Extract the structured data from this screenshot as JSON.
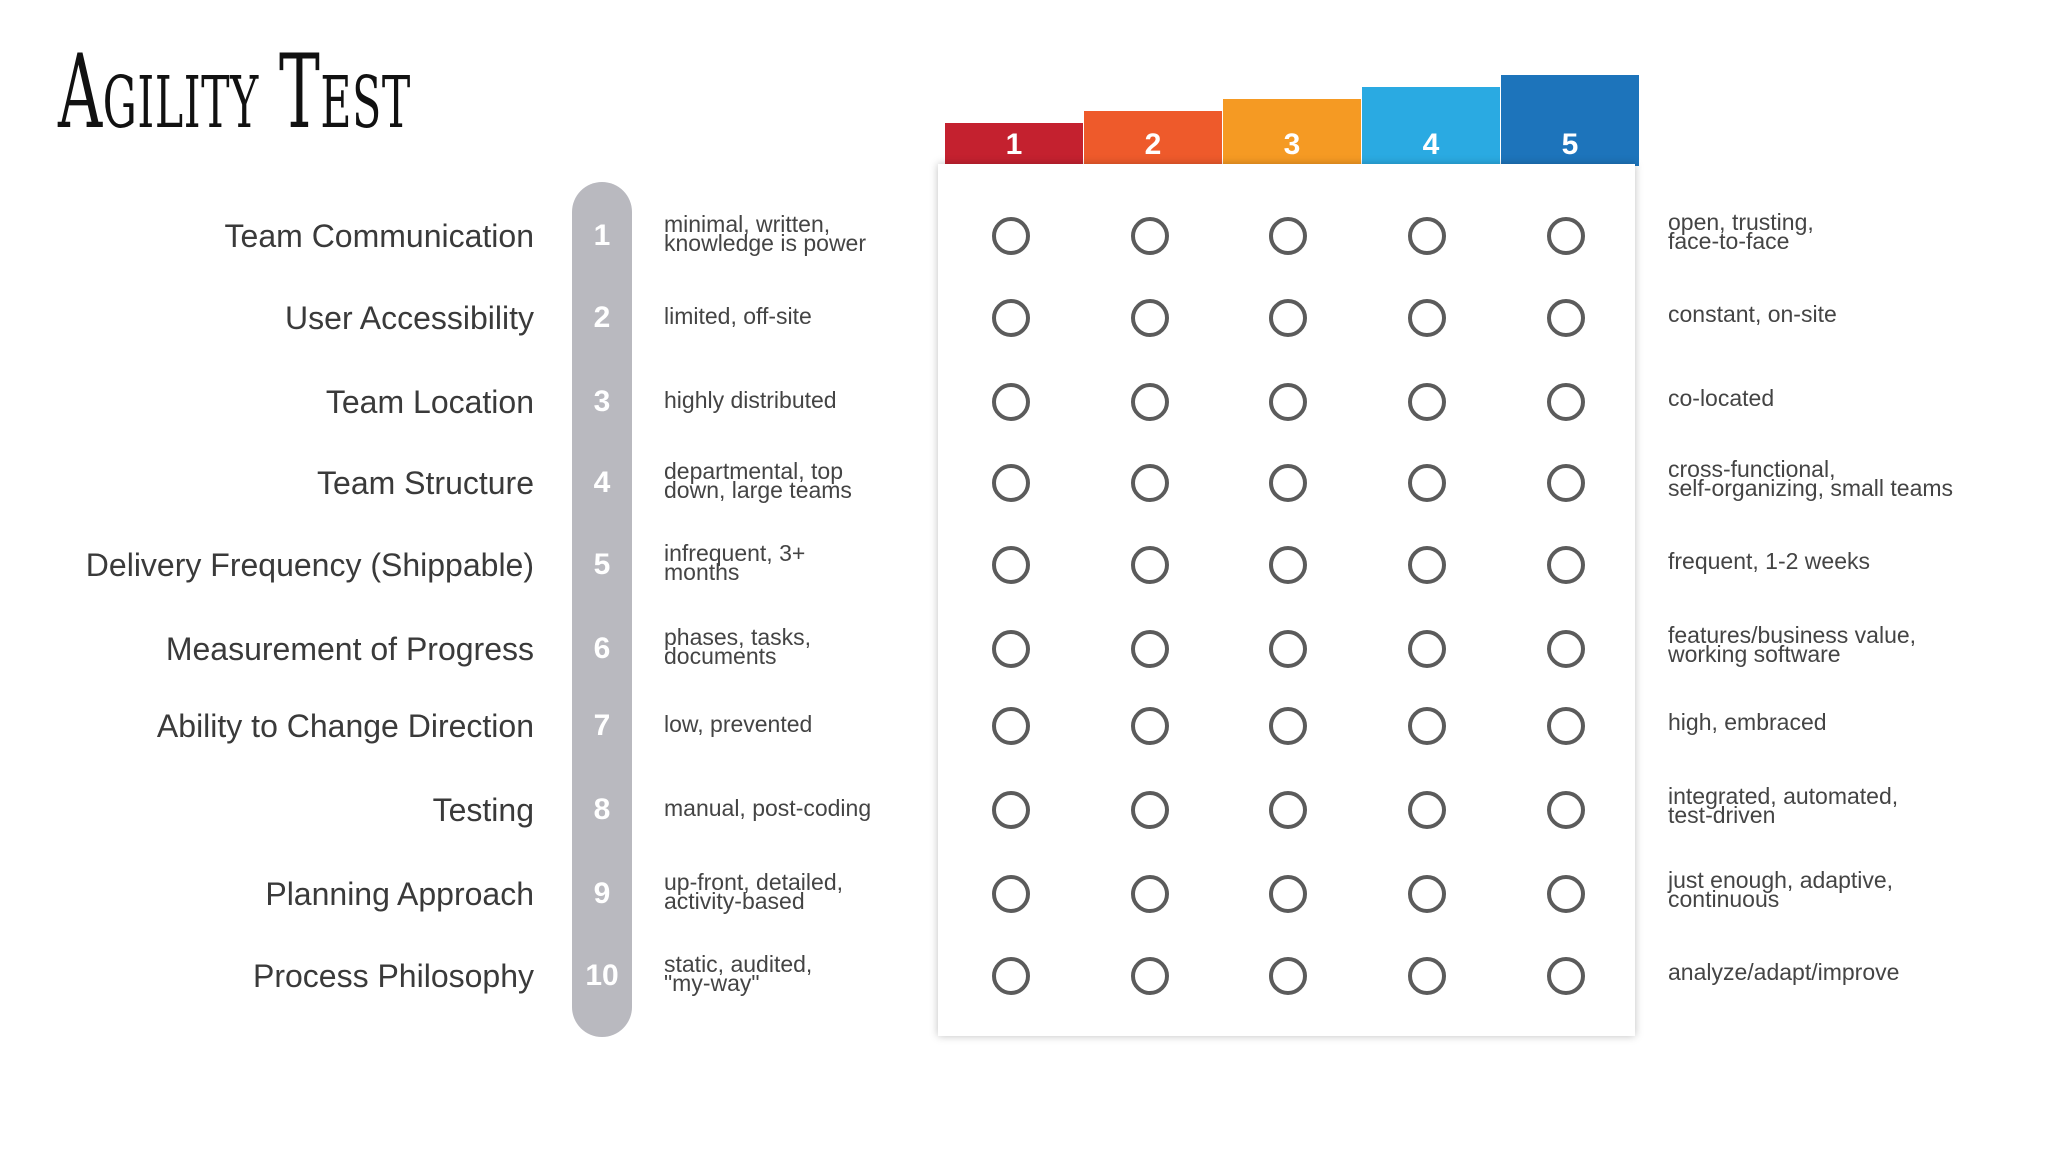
{
  "title": "Agility Test",
  "scale": [
    {
      "label": "1",
      "color": "#c4212f"
    },
    {
      "label": "2",
      "color": "#ee5a2b"
    },
    {
      "label": "3",
      "color": "#f59a23"
    },
    {
      "label": "4",
      "color": "#2aaae2"
    },
    {
      "label": "5",
      "color": "#1d74bb"
    }
  ],
  "rows": [
    {
      "num": "1",
      "label": "Team Communication",
      "low": "minimal, written,\nknowledge is power",
      "high": "open, trusting,\nface-to-face"
    },
    {
      "num": "2",
      "label": "User Accessibility",
      "low": "limited, off-site",
      "high": "constant, on-site"
    },
    {
      "num": "3",
      "label": "Team Location",
      "low": "highly distributed",
      "high": "co-located"
    },
    {
      "num": "4",
      "label": "Team Structure",
      "low": "departmental, top\ndown, large teams",
      "high": "cross-functional,\nself-organizing, small teams"
    },
    {
      "num": "5",
      "label": "Delivery Frequency (Shippable)",
      "low": "infrequent, 3+\nmonths",
      "high": "frequent, 1-2 weeks"
    },
    {
      "num": "6",
      "label": "Measurement of Progress",
      "low": "phases, tasks,\ndocuments",
      "high": "features/business value,\nworking software"
    },
    {
      "num": "7",
      "label": "Ability to Change Direction",
      "low": "low, prevented",
      "high": "high, embraced"
    },
    {
      "num": "8",
      "label": "Testing",
      "low": "manual, post-coding",
      "high": "integrated, automated,\ntest-driven"
    },
    {
      "num": "9",
      "label": "Planning Approach",
      "low": "up-front, detailed,\nactivity-based",
      "high": "just enough, adaptive,\ncontinuous"
    },
    {
      "num": "10",
      "label": "Process Philosophy",
      "low": "static, audited,\n\"my-way\"",
      "high": "analyze/adapt/improve"
    }
  ]
}
